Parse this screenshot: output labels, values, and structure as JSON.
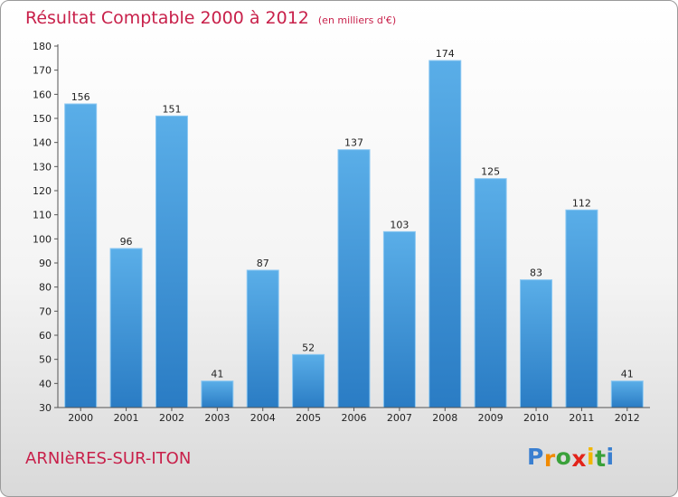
{
  "chart_data": {
    "type": "bar",
    "title": "Résultat Comptable 2000 à 2012",
    "subtitle": "(en milliers d'€)",
    "categories": [
      "2000",
      "2001",
      "2002",
      "2003",
      "2004",
      "2005",
      "2006",
      "2007",
      "2008",
      "2009",
      "2010",
      "2011",
      "2012"
    ],
    "values": [
      156,
      96,
      151,
      41,
      87,
      52,
      137,
      103,
      174,
      125,
      83,
      112,
      41
    ],
    "ylim": [
      30,
      180
    ],
    "yticks": [
      30,
      40,
      50,
      60,
      70,
      80,
      90,
      100,
      110,
      120,
      130,
      140,
      150,
      160,
      170,
      180
    ],
    "xlabel": "",
    "ylabel": "",
    "grid": false,
    "bar_color": "#2f86d0"
  },
  "location": "ARNIèRES-SUR-ITON",
  "logo": {
    "letters": [
      "P",
      "r",
      "o",
      "x",
      "i",
      "t",
      "i"
    ],
    "colors": [
      "#3a7fd0",
      "#f08a00",
      "#3aa13a",
      "#e2231a",
      "#f2b600",
      "#3aa13a",
      "#3a7fd0"
    ]
  }
}
